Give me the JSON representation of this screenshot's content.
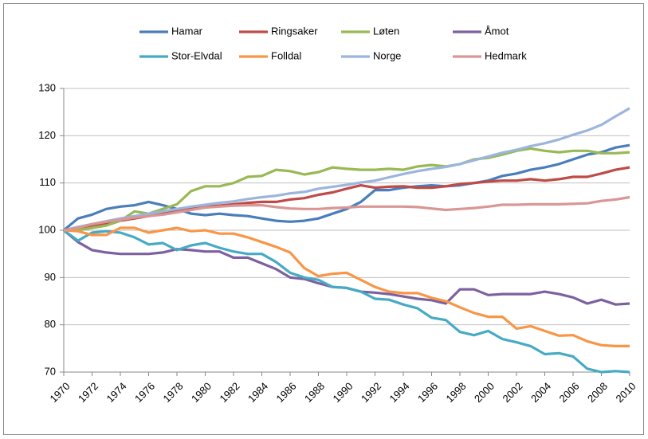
{
  "chart_data": {
    "type": "line",
    "x": [
      1970,
      1971,
      1972,
      1973,
      1974,
      1975,
      1976,
      1977,
      1978,
      1979,
      1980,
      1981,
      1982,
      1983,
      1984,
      1985,
      1986,
      1987,
      1988,
      1989,
      1990,
      1991,
      1992,
      1993,
      1994,
      1995,
      1996,
      1997,
      1998,
      1999,
      2000,
      2001,
      2002,
      2003,
      2004,
      2005,
      2006,
      2007,
      2008,
      2009,
      2010
    ],
    "xlim": [
      1970,
      2010
    ],
    "xticks": [
      1970,
      1972,
      1974,
      1976,
      1978,
      1980,
      1982,
      1984,
      1986,
      1988,
      1990,
      1992,
      1994,
      1996,
      1998,
      2000,
      2002,
      2004,
      2006,
      2008,
      2010
    ],
    "ylim": [
      70,
      130
    ],
    "yticks": [
      70,
      80,
      90,
      100,
      110,
      120,
      130
    ],
    "grid": true,
    "legend": "top",
    "series": [
      {
        "name": "Hamar",
        "color": "#4a7ebb",
        "values": [
          100,
          102.5,
          103.3,
          104.5,
          105,
          105.3,
          106,
          105.3,
          104.5,
          103.5,
          103.2,
          103.5,
          103.2,
          103,
          102.5,
          102,
          101.8,
          102,
          102.5,
          103.5,
          104.5,
          106,
          108.5,
          108.5,
          109,
          109.3,
          109.5,
          109.3,
          109.5,
          110,
          110.5,
          111.5,
          112,
          112.8,
          113.3,
          114,
          115,
          116,
          116.5,
          117.5,
          118
        ]
      },
      {
        "name": "Ringsaker",
        "color": "#be4b48",
        "values": [
          100,
          100.5,
          101,
          101.5,
          102,
          102.5,
          103,
          103.5,
          104,
          104.5,
          105,
          105.2,
          105.5,
          105.8,
          106,
          106,
          106.5,
          106.8,
          107.5,
          108,
          108.8,
          109.5,
          109,
          109.2,
          109.3,
          109,
          109,
          109.3,
          109.8,
          110,
          110.3,
          110.5,
          110.5,
          110.8,
          110.5,
          110.8,
          111.3,
          111.3,
          112,
          112.8,
          113.3
        ]
      },
      {
        "name": "Løten",
        "color": "#98b954",
        "values": [
          100,
          100,
          100.5,
          101,
          102,
          104,
          103.5,
          104.5,
          105.5,
          108.3,
          109.3,
          109.3,
          110,
          111.3,
          111.5,
          112.8,
          112.5,
          111.8,
          112.3,
          113.3,
          113,
          112.8,
          112.8,
          113,
          112.8,
          113.5,
          113.8,
          113.5,
          114,
          115,
          115.3,
          116,
          116.8,
          117.3,
          116.8,
          116.5,
          116.8,
          116.8,
          116.3,
          116.3,
          116.5
        ]
      },
      {
        "name": "Åmot",
        "color": "#7d60a0",
        "values": [
          100,
          97.5,
          95.8,
          95.3,
          95,
          95,
          95,
          95.3,
          96,
          95.8,
          95.5,
          95.5,
          94.2,
          94.2,
          93,
          91.8,
          90,
          89.7,
          88.8,
          88,
          87.8,
          87,
          86.8,
          86.5,
          86,
          85.5,
          85.2,
          84.5,
          87.5,
          87.5,
          86.3,
          86.5,
          86.5,
          86.5,
          87,
          86.5,
          85.8,
          84.5,
          85.3,
          84.3,
          84.5
        ]
      },
      {
        "name": "Stor-Elvdal",
        "color": "#46aac5",
        "values": [
          100,
          97.8,
          99.5,
          99.8,
          99.5,
          98.5,
          97,
          97.3,
          95.8,
          96.8,
          97.3,
          96.3,
          95.5,
          95,
          95,
          93.3,
          91,
          90,
          89.5,
          88,
          87.8,
          87,
          85.5,
          85.3,
          84.3,
          83.5,
          81.5,
          81,
          78.5,
          77.8,
          78.7,
          77,
          76.3,
          75.5,
          73.8,
          74,
          73.3,
          70.7,
          70,
          70.2,
          70
        ]
      },
      {
        "name": "Folldal",
        "color": "#f79646",
        "values": [
          100,
          99.8,
          99,
          99,
          100.5,
          100.5,
          99.5,
          100,
          100.5,
          99.8,
          100,
          99.3,
          99.3,
          98.5,
          97.5,
          96.5,
          95.3,
          92,
          90.3,
          90.8,
          91,
          89.5,
          88,
          87,
          86.7,
          86.7,
          85.7,
          85,
          83.7,
          82.5,
          81.7,
          81.7,
          79.2,
          79.7,
          78.7,
          77.7,
          77.8,
          76.5,
          75.7,
          75.5,
          75.5
        ]
      },
      {
        "name": "Norge",
        "color": "#9bb5dd",
        "values": [
          100,
          100.7,
          101.3,
          101.9,
          102.5,
          103,
          103.5,
          104,
          104.5,
          105,
          105.4,
          105.8,
          106.1,
          106.6,
          107,
          107.3,
          107.8,
          108.1,
          108.8,
          109.2,
          109.6,
          110.1,
          110.5,
          111.2,
          111.9,
          112.5,
          113,
          113.4,
          114,
          114.8,
          115.6,
          116.4,
          117,
          117.8,
          118.4,
          119.2,
          120.2,
          121.1,
          122.3,
          124.1,
          125.8
        ]
      },
      {
        "name": "Hedmark",
        "color": "#d99694",
        "values": [
          100,
          100.5,
          101.3,
          101.8,
          102.2,
          102.7,
          103,
          103.3,
          103.8,
          104.3,
          104.8,
          105,
          105.2,
          105.3,
          105.3,
          104.9,
          104.6,
          104.5,
          104.5,
          104.7,
          104.8,
          105,
          105,
          105,
          105,
          104.9,
          104.6,
          104.3,
          104.5,
          104.7,
          105,
          105.4,
          105.4,
          105.5,
          105.5,
          105.5,
          105.6,
          105.7,
          106.2,
          106.5,
          107
        ]
      }
    ]
  }
}
